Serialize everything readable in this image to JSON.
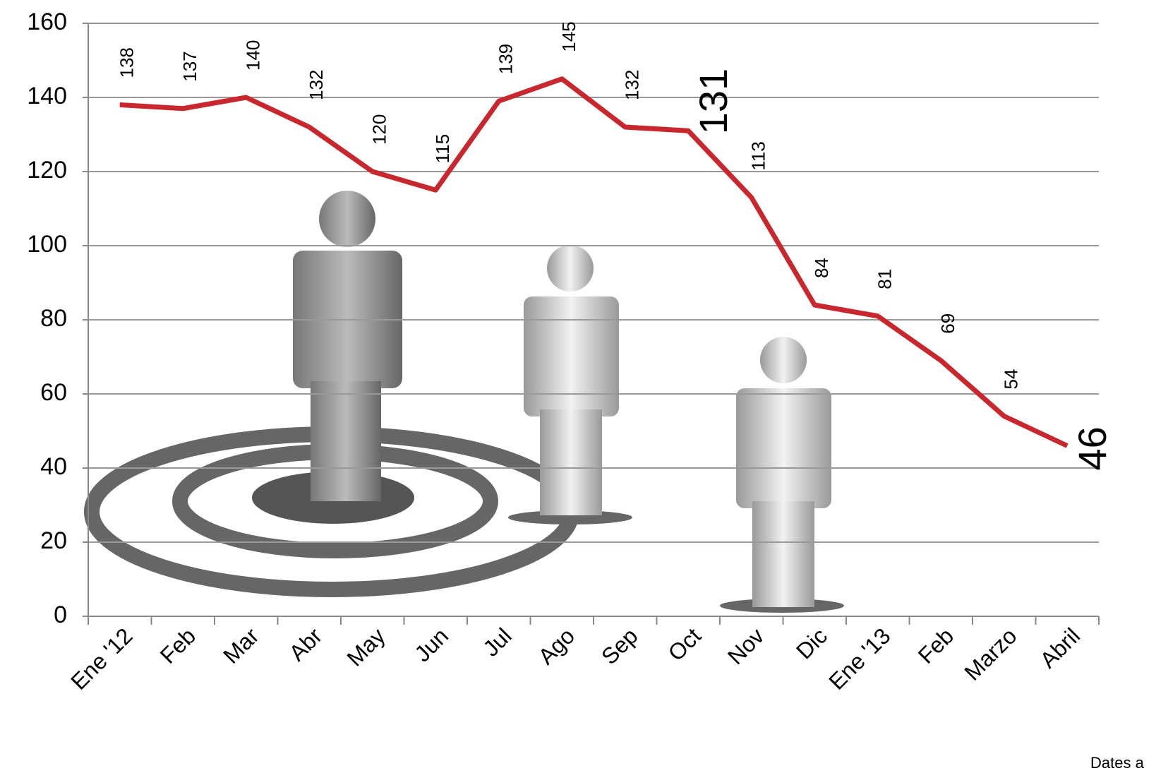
{
  "chart_data": {
    "type": "line",
    "categories": [
      "Ene '12",
      "Feb",
      "Mar",
      "Abr",
      "May",
      "Jun",
      "Jul",
      "Ago",
      "Sep",
      "Oct",
      "Nov",
      "Dic",
      "Ene '13",
      "Feb",
      "Marzo",
      "Abril"
    ],
    "series": [
      {
        "name": null,
        "color": "#c8282d",
        "values": [
          138,
          137,
          140,
          132,
          120,
          115,
          139,
          145,
          132,
          131,
          113,
          84,
          81,
          69,
          54,
          46
        ]
      }
    ],
    "ylim": [
      0,
      160
    ],
    "yticks": [
      0,
      20,
      40,
      60,
      80,
      100,
      120,
      140,
      160
    ],
    "grid": true,
    "source": "Dates a"
  }
}
